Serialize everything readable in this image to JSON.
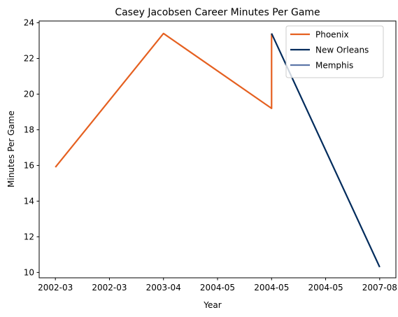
{
  "chart_data": {
    "type": "line",
    "title": "Casey Jacobsen Career Minutes Per Game",
    "xlabel": "Year",
    "ylabel": "Minutes Per Game",
    "x_tick_labels": [
      "2002-03",
      "2002-03",
      "2003-04",
      "2004-05",
      "2004-05",
      "2004-05",
      "2007-08"
    ],
    "y_ticks": [
      10,
      12,
      14,
      16,
      18,
      20,
      22,
      24
    ],
    "xlim": [
      -0.15,
      3.15
    ],
    "ylim": [
      9.7,
      24.1
    ],
    "grid": false,
    "legend_position": "top-right",
    "series": [
      {
        "name": "Phoenix",
        "color": "#E56020",
        "x": [
          0,
          1,
          2,
          2
        ],
        "y": [
          15.9,
          23.4,
          19.2,
          23.4
        ]
      },
      {
        "name": "New Orleans",
        "color": "#002B5C",
        "x": [
          2,
          3
        ],
        "y": [
          23.4,
          10.3
        ]
      },
      {
        "name": "Memphis",
        "color": "#5D76A9",
        "x": [],
        "y": []
      }
    ]
  }
}
